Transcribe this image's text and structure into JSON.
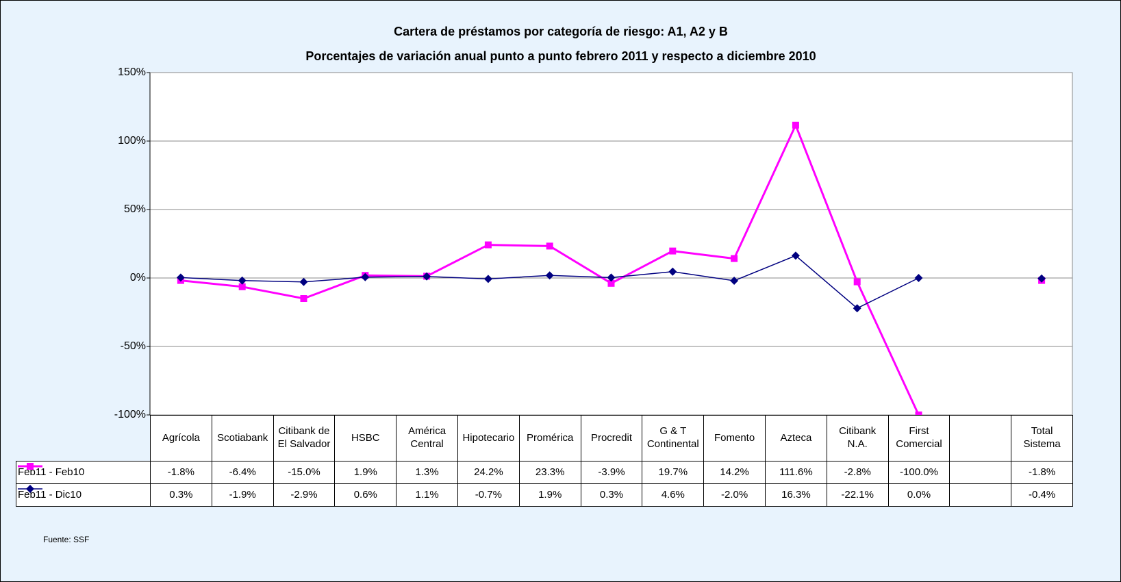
{
  "chart_data": {
    "type": "line",
    "title": "Cartera de préstamos por categoría de riesgo: A1, A2 y B",
    "subtitle": "Porcentajes de variación anual punto a punto febrero 2011 y respecto a diciembre 2010",
    "categories": [
      "Agrícola",
      "Scotiabank",
      "Citibank de El Salvador",
      "HSBC",
      "América Central",
      "Hipotecario",
      "Promérica",
      "Procredit",
      "G & T Continental",
      "Fomento",
      "Azteca",
      "Citibank N.A.",
      "First Comercial",
      null,
      "Total Sistema"
    ],
    "series": [
      {
        "name": "Feb11 - Feb10",
        "color": "#ff00ff",
        "marker": "square",
        "values": [
          -1.8,
          -6.4,
          -15.0,
          1.9,
          1.3,
          24.2,
          23.3,
          -3.9,
          19.7,
          14.2,
          111.6,
          -2.8,
          -100.0,
          null,
          -1.8
        ],
        "value_labels": [
          "-1.8%",
          "-6.4%",
          "-15.0%",
          "1.9%",
          "1.3%",
          "24.2%",
          "23.3%",
          "-3.9%",
          "19.7%",
          "14.2%",
          "111.6%",
          "-2.8%",
          "-100.0%",
          null,
          "-1.8%"
        ]
      },
      {
        "name": "Feb11 - Dic10",
        "color": "#000080",
        "marker": "diamond",
        "values": [
          0.3,
          -1.9,
          -2.9,
          0.6,
          1.1,
          -0.7,
          1.9,
          0.3,
          4.6,
          -2.0,
          16.3,
          -22.1,
          0.0,
          null,
          -0.4
        ],
        "value_labels": [
          "0.3%",
          "-1.9%",
          "-2.9%",
          "0.6%",
          "1.1%",
          "-0.7%",
          "1.9%",
          "0.3%",
          "4.6%",
          "-2.0%",
          "16.3%",
          "-22.1%",
          "0.0%",
          null,
          "-0.4%"
        ]
      }
    ],
    "ylim": [
      -100,
      150
    ],
    "yticks": [
      {
        "value": -100,
        "label": "-100%"
      },
      {
        "value": -50,
        "label": "-50%"
      },
      {
        "value": 0,
        "label": "0%"
      },
      {
        "value": 50,
        "label": "50%"
      },
      {
        "value": 100,
        "label": "100%"
      },
      {
        "value": 150,
        "label": "150%"
      }
    ],
    "grid": true,
    "source": "Fuente: SSF"
  }
}
